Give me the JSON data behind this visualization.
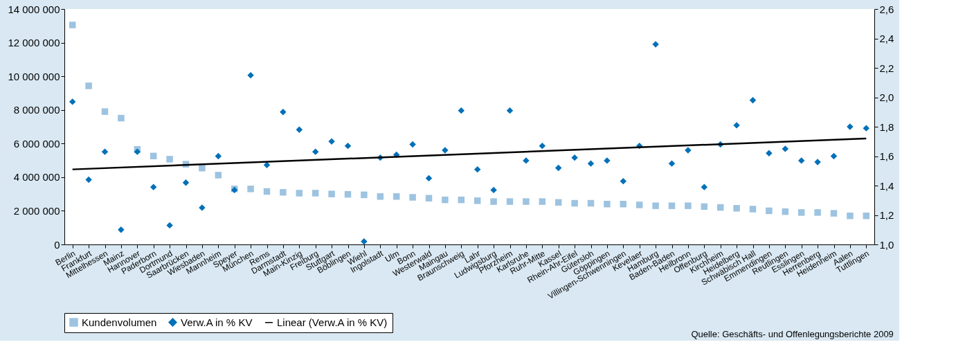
{
  "chart_data": {
    "type": "scatter",
    "categories": [
      "Berlin",
      "Frankfurt",
      "Mittelhessen",
      "Mainz",
      "Hannover",
      "Paderborn",
      "Dortmund",
      "Saarbrücken",
      "Wiesbaden",
      "Mannheim",
      "Speyer",
      "München",
      "Rems",
      "Darmstadt",
      "Main-Kinzig",
      "Freiburg",
      "Stuttgart",
      "Böblingen",
      "Wiehl",
      "Ingolstadt",
      "Ulm",
      "Bonn",
      "Westerwald",
      "Maingau",
      "Braunschweig",
      "Lahr",
      "Ludwigsburg",
      "Pforzheim",
      "Karlsruhe",
      "Ruhr-Mitte",
      "Kassel",
      "Rhein-Ahr-Eifel",
      "Gütersloh",
      "Göppingen",
      "Villingen-Schwenningen",
      "Kevelaer",
      "Hamburg",
      "Baden-Baden",
      "Heilbronn",
      "Offenburg",
      "Kirchheim",
      "Heidelberg",
      "Schwäbisch Hall",
      "Emmendingen",
      "Reutlingen",
      "Esslingen",
      "Herrenberg",
      "Heidenheim",
      "Aalen",
      "Tuttlingen"
    ],
    "series": [
      {
        "name": "Kundenvolumen",
        "color": "#9dc3e0",
        "marker": "square",
        "values": [
          13050000,
          9430000,
          7900000,
          7510000,
          5650000,
          5260000,
          5070000,
          4770000,
          4540000,
          4120000,
          3300000,
          3300000,
          3150000,
          3100000,
          3050000,
          3050000,
          3000000,
          2980000,
          2950000,
          2850000,
          2850000,
          2800000,
          2750000,
          2650000,
          2650000,
          2600000,
          2550000,
          2550000,
          2550000,
          2550000,
          2500000,
          2450000,
          2450000,
          2400000,
          2400000,
          2350000,
          2300000,
          2300000,
          2300000,
          2250000,
          2200000,
          2150000,
          2100000,
          2000000,
          1950000,
          1900000,
          1900000,
          1850000,
          1700000,
          1700000
        ]
      },
      {
        "name": "Verw.A in % KV",
        "color": "#0070b8",
        "marker": "diamond",
        "axis": "y2",
        "values": [
          1.97,
          1.44,
          1.63,
          1.1,
          1.63,
          1.39,
          1.13,
          1.42,
          1.25,
          1.6,
          1.37,
          2.15,
          1.54,
          1.9,
          1.78,
          1.63,
          1.7,
          1.67,
          1.02,
          1.59,
          1.61,
          1.68,
          1.45,
          1.64,
          1.91,
          1.51,
          1.37,
          1.91,
          1.57,
          1.67,
          1.52,
          1.59,
          1.55,
          1.57,
          1.43,
          1.67,
          2.36,
          1.55,
          1.64,
          1.39,
          1.68,
          1.81,
          1.98,
          1.62,
          1.65,
          1.57,
          1.56,
          1.6,
          1.8,
          1.79
        ]
      },
      {
        "name": "Linear (Verw.A in % KV)",
        "type": "line",
        "color": "#000000",
        "axis": "y2",
        "x": [
          "Berlin",
          "Tuttlingen"
        ],
        "values": [
          1.51,
          1.72
        ]
      }
    ],
    "ylim": [
      0,
      14000000
    ],
    "yticks": [
      {
        "value": 0,
        "label": "0"
      },
      {
        "value": 2000000,
        "label": "2 000 000"
      },
      {
        "value": 4000000,
        "label": "4 000 000"
      },
      {
        "value": 6000000,
        "label": "6 000 000"
      },
      {
        "value": 8000000,
        "label": "8 000 000"
      },
      {
        "value": 10000000,
        "label": "10 000 000"
      },
      {
        "value": 12000000,
        "label": "12 000 000"
      },
      {
        "value": 14000000,
        "label": "14 000 000"
      }
    ],
    "y2lim": [
      1.0,
      2.6
    ],
    "y2ticks": [
      {
        "value": 1.0,
        "label": "1,0"
      },
      {
        "value": 1.2,
        "label": "1,2"
      },
      {
        "value": 1.4,
        "label": "1,4"
      },
      {
        "value": 1.6,
        "label": "1,6"
      },
      {
        "value": 1.8,
        "label": "1,8"
      },
      {
        "value": 2.0,
        "label": "2,0"
      },
      {
        "value": 2.2,
        "label": "2,2"
      },
      {
        "value": 2.4,
        "label": "2,4"
      },
      {
        "value": 2.6,
        "label": "2,6"
      }
    ],
    "grid": false,
    "legend": "bottom",
    "annotations": [
      "Quelle: Geschäfts- und Offenlegungsberichte 2009"
    ]
  }
}
